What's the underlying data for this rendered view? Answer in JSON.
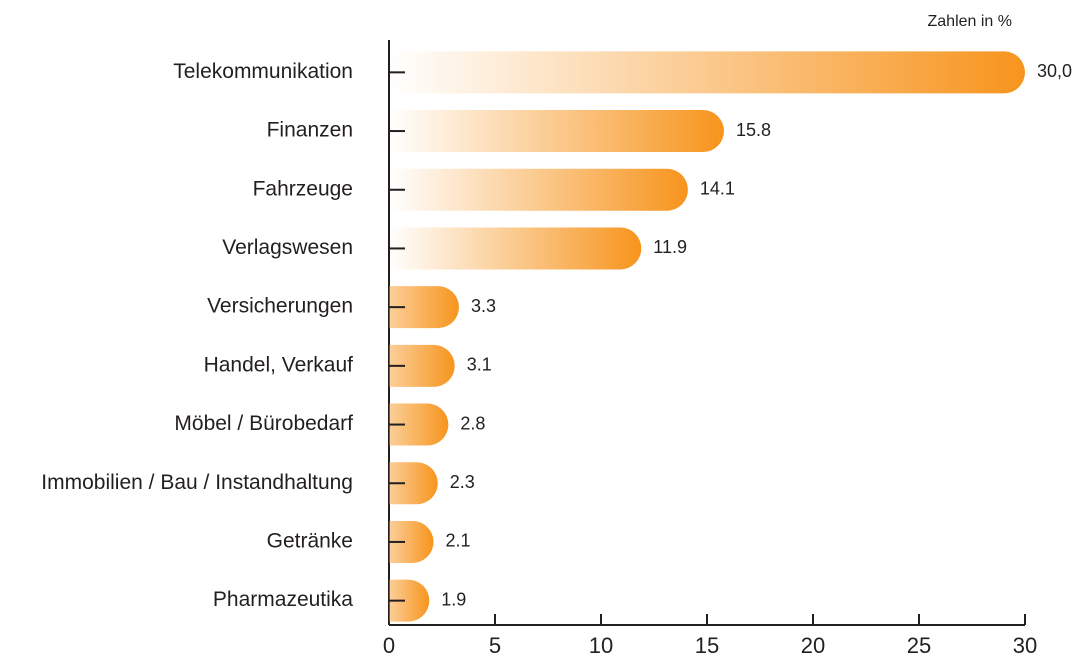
{
  "chart_data": {
    "type": "barh",
    "annotation": "Zahlen in %",
    "categories": [
      "Telekommunikation",
      "Finanzen",
      "Fahrzeuge",
      "Verlagswesen",
      "Versicherungen",
      "Handel, Verkauf",
      "Möbel / Bürobedarf",
      "Immobilien / Bau / Instandhaltung",
      "Getränke",
      "Pharmazeutika"
    ],
    "values": [
      30.0,
      15.8,
      14.1,
      11.9,
      3.3,
      3.1,
      2.8,
      2.3,
      2.1,
      1.9
    ],
    "value_labels": [
      "30,0",
      "15.8",
      "14.1",
      "11.9",
      "3.3",
      "3.1",
      "2.8",
      "2.3",
      "2.1",
      "1.9"
    ],
    "color": "#f7941d",
    "xlim": [
      0,
      30
    ],
    "xticks": [
      0,
      5,
      10,
      15,
      20,
      25,
      30
    ],
    "grid": false
  }
}
